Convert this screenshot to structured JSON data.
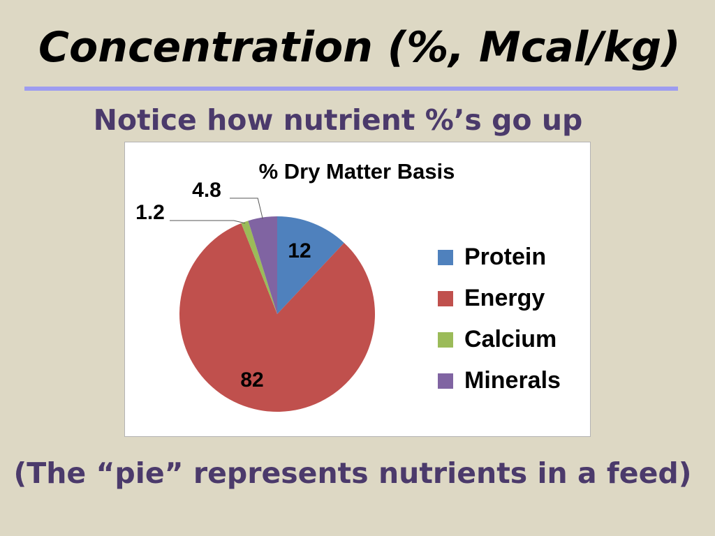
{
  "slide": {
    "title": "Concentration (%, Mcal/kg)",
    "subtitle": "Notice how nutrient %’s go up",
    "caption": "(The “pie” represents nutrients in a feed)"
  },
  "colors": {
    "background": "#ddd8c4",
    "title_rule": "#9d9cf0",
    "text_purple": "#4b3a6b"
  },
  "chart_data": {
    "type": "pie",
    "title": "% Dry Matter Basis",
    "categories": [
      "Protein",
      "Energy",
      "Calcium",
      "Minerals"
    ],
    "values": [
      12,
      82,
      1.2,
      4.8
    ],
    "data_labels": [
      "12",
      "82",
      "1.2",
      "4.8"
    ],
    "colors": [
      "#4f81bd",
      "#c0504d",
      "#9bbb59",
      "#8064a2"
    ],
    "legend_position": "right",
    "start_angle_deg": 0,
    "direction": "clockwise"
  }
}
